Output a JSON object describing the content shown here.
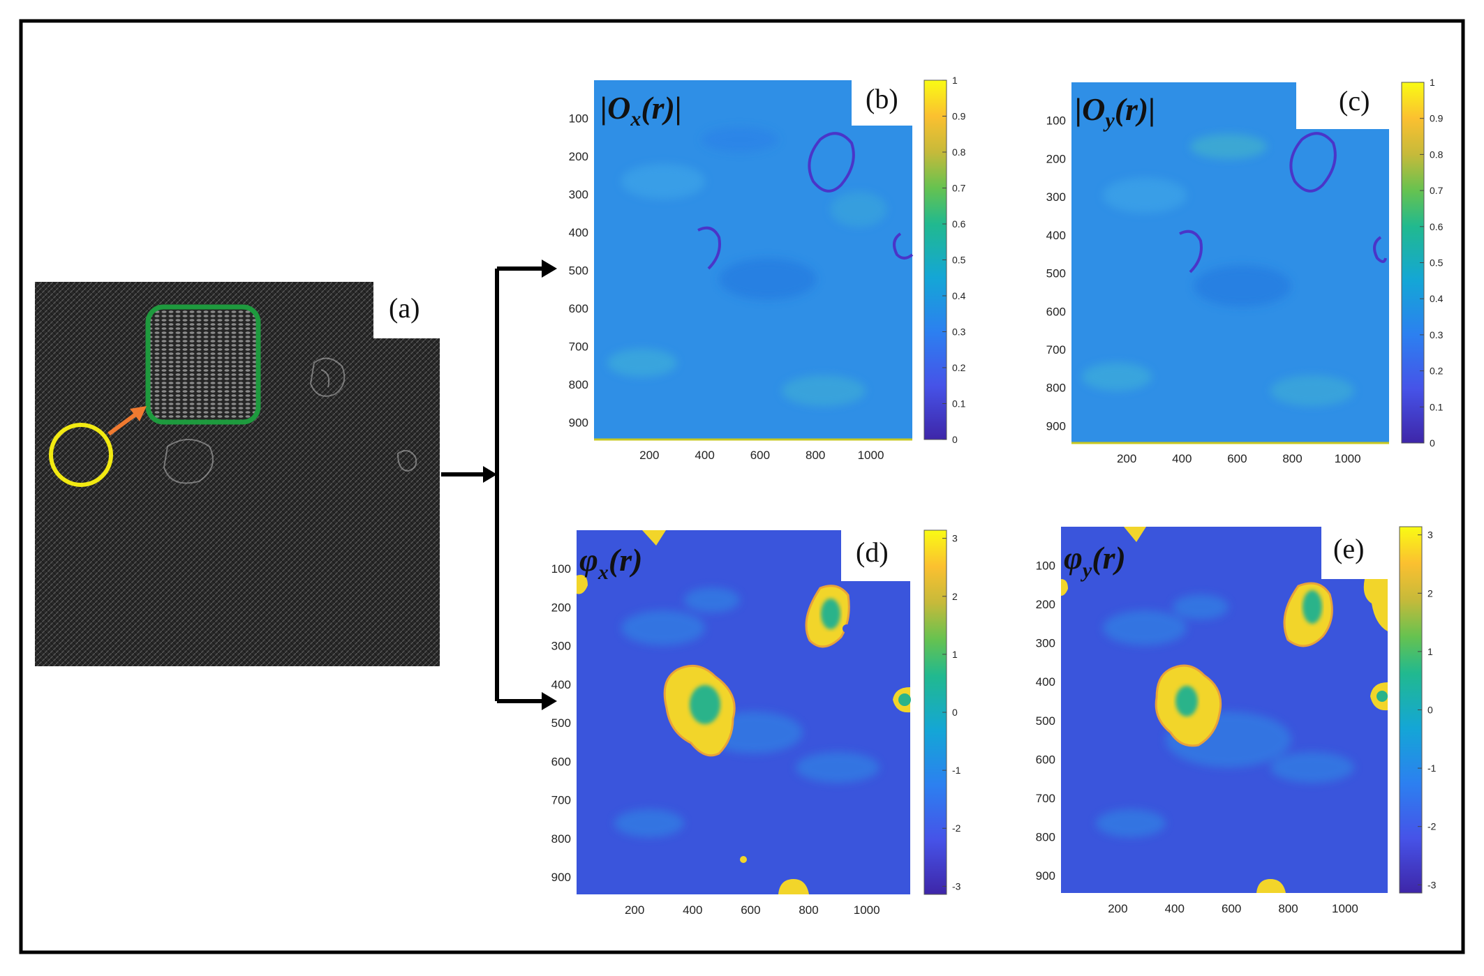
{
  "panels": {
    "a": {
      "label": "(a)"
    },
    "b": {
      "label": "(b)",
      "title": "|O",
      "sub": "x",
      "arg": "(r)|",
      "cbar_ticks": [
        "1",
        "0.9",
        "0.8",
        "0.7",
        "0.6",
        "0.5",
        "0.4",
        "0.3",
        "0.2",
        "0.1",
        "0"
      ],
      "cbar_range": [
        0,
        1
      ]
    },
    "c": {
      "label": "(c)",
      "title": "|O",
      "sub": "y",
      "arg": "(r)|",
      "cbar_ticks": [
        "1",
        "0.9",
        "0.8",
        "0.7",
        "0.6",
        "0.5",
        "0.4",
        "0.3",
        "0.2",
        "0.1",
        "0"
      ],
      "cbar_range": [
        0,
        1
      ]
    },
    "d": {
      "label": "(d)",
      "title": "φ",
      "sub": "x",
      "arg": "(r)",
      "cbar_ticks": [
        "3",
        "2",
        "1",
        "0",
        "-1",
        "-2",
        "-3"
      ],
      "cbar_range": [
        -3.14,
        3.14
      ]
    },
    "e": {
      "label": "(e)",
      "title": "φ",
      "sub": "y",
      "arg": "(r)",
      "cbar_ticks": [
        "3",
        "2",
        "1",
        "0",
        "-1",
        "-2",
        "-3"
      ],
      "cbar_range": [
        -3.14,
        3.14
      ]
    }
  },
  "axes": {
    "y_ticks": [
      "100",
      "200",
      "300",
      "400",
      "500",
      "600",
      "700",
      "800",
      "900"
    ],
    "x_ticks": [
      "200",
      "400",
      "600",
      "800",
      "1000"
    ]
  },
  "colors": {
    "frame": "#000000",
    "circle": "#f2ea12",
    "rect": "#1e9a3e",
    "arrow": "#f07a30",
    "amp_bg": "#2f8fe6",
    "phase_bg": "#3a55dc",
    "phase_blob": "#f2d52a",
    "phase_core": "#2ab38a"
  }
}
